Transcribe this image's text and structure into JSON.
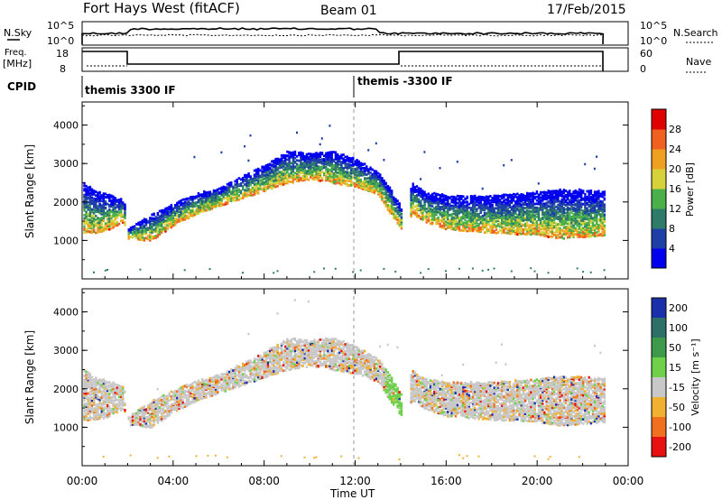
{
  "header": {
    "station": "Fort Hays West (fitACF)",
    "beam": "Beam 01",
    "date": "17/Feb/2015"
  },
  "nsky_panel": {
    "left_label": "N.Sky",
    "left_ticks": [
      "10^5",
      "10^0"
    ],
    "right_ticks": [
      "10^5",
      "10^0"
    ],
    "right_label": "N.Search"
  },
  "freq_panel": {
    "left_label_line1": "Freq.",
    "left_label_line2": "[MHz]",
    "left_ticks": [
      "18",
      "8"
    ],
    "right_ticks": [
      "60",
      "0"
    ],
    "right_label": "Nave"
  },
  "cpid": {
    "label": "CPID",
    "segments": [
      "themis 3300 IF",
      "themis -3300 IF"
    ]
  },
  "chart_data": [
    {
      "type": "heatmap",
      "name": "power",
      "ylabel": "Slant Range [km]",
      "yticks": [
        "1000",
        "2000",
        "3000",
        "4000"
      ],
      "ylim": [
        0,
        4600
      ],
      "xlim_hours": [
        0,
        24
      ],
      "colorbar": {
        "label": "Power [dB]",
        "ticks": [
          "4",
          "8",
          "12",
          "16",
          "20",
          "24",
          "28"
        ],
        "colors": [
          "#0000ee",
          "#1f3fa8",
          "#2e7b6a",
          "#49b04a",
          "#d8d23a",
          "#f0a020",
          "#f06020",
          "#e00000"
        ]
      }
    },
    {
      "type": "heatmap",
      "name": "velocity",
      "ylabel": "Slant Range [km]",
      "yticks": [
        "1000",
        "2000",
        "3000",
        "4000"
      ],
      "ylim": [
        0,
        4600
      ],
      "xlim_hours": [
        0,
        24
      ],
      "colorbar": {
        "label": "Velocity [m s⁻¹]",
        "ticks": [
          "200",
          "100",
          "50",
          "15",
          "-15",
          "-50",
          "-100",
          "-200"
        ],
        "colors": [
          "#1a2faa",
          "#2f6f6a",
          "#3c9a4a",
          "#6fd04a",
          "#c8c8c8",
          "#f0b030",
          "#f07020",
          "#e81010"
        ]
      }
    }
  ],
  "time_axis": {
    "ticks": [
      "00:00",
      "04:00",
      "08:00",
      "12:00",
      "16:00",
      "20:00",
      "00:00"
    ],
    "label": "Time UT"
  },
  "range_profile": [
    {
      "t": 0.0,
      "lo": 1200,
      "hi": 2550
    },
    {
      "t": 0.5,
      "lo": 1200,
      "hi": 2350
    },
    {
      "t": 1.0,
      "lo": 1250,
      "hi": 2250
    },
    {
      "t": 1.8,
      "lo": 1500,
      "hi": 2100
    },
    {
      "t": 2.0,
      "lo": 1050,
      "hi": 1350
    },
    {
      "t": 3.0,
      "lo": 1000,
      "hi": 1700
    },
    {
      "t": 4.0,
      "lo": 1400,
      "hi": 2000
    },
    {
      "t": 5.0,
      "lo": 1700,
      "hi": 2250
    },
    {
      "t": 6.0,
      "lo": 1900,
      "hi": 2400
    },
    {
      "t": 7.0,
      "lo": 2100,
      "hi": 2700
    },
    {
      "t": 8.0,
      "lo": 2300,
      "hi": 3000
    },
    {
      "t": 9.0,
      "lo": 2500,
      "hi": 3350
    },
    {
      "t": 10.0,
      "lo": 2600,
      "hi": 3300
    },
    {
      "t": 11.0,
      "lo": 2500,
      "hi": 3350
    },
    {
      "t": 12.0,
      "lo": 2400,
      "hi": 3150
    },
    {
      "t": 13.0,
      "lo": 2200,
      "hi": 2800
    },
    {
      "t": 13.5,
      "lo": 1700,
      "hi": 2400
    },
    {
      "t": 14.0,
      "lo": 1300,
      "hi": 1900
    },
    {
      "t": 14.5,
      "lo": 1700,
      "hi": 2500
    },
    {
      "t": 15.0,
      "lo": 1500,
      "hi": 2300
    },
    {
      "t": 16.0,
      "lo": 1300,
      "hi": 2200
    },
    {
      "t": 18.0,
      "lo": 1200,
      "hi": 2200
    },
    {
      "t": 20.0,
      "lo": 1150,
      "hi": 2300
    },
    {
      "t": 21.0,
      "lo": 1050,
      "hi": 2350
    },
    {
      "t": 22.0,
      "lo": 1100,
      "hi": 2350
    },
    {
      "t": 23.0,
      "lo": 1150,
      "hi": 2300
    }
  ]
}
